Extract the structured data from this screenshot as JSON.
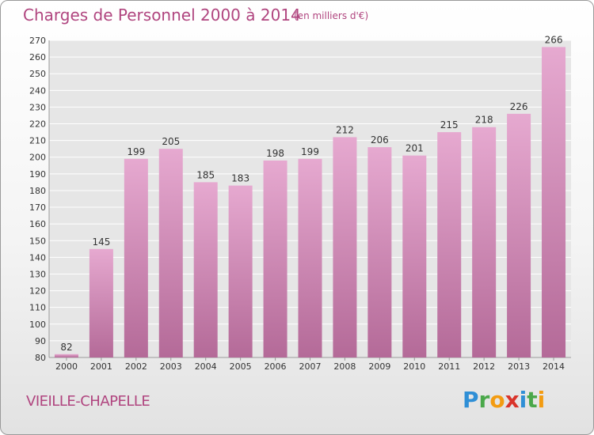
{
  "title": "Charges de Personnel 2000 à 2014",
  "subtitle": "(en milliers d'€)",
  "commune": "VIEILLE-CHAPELLE",
  "logo": {
    "letters": [
      "P",
      "r",
      "o",
      "x",
      "i",
      "t",
      "i"
    ],
    "colors": [
      "#2f8fd6",
      "#4aa84a",
      "#f39c12",
      "#d9342b",
      "#2f8fd6",
      "#4aa84a",
      "#f39c12"
    ]
  },
  "colors": {
    "bar_top": "#e6a9d0",
    "bar_bottom": "#b46a98",
    "grid": "#ffffff",
    "text": "#333333",
    "accent": "#b0457f"
  },
  "chart_data": {
    "type": "bar",
    "categories": [
      "2000",
      "2001",
      "2002",
      "2003",
      "2004",
      "2005",
      "2006",
      "2007",
      "2008",
      "2009",
      "2010",
      "2011",
      "2012",
      "2013",
      "2014"
    ],
    "values": [
      82,
      145,
      199,
      205,
      185,
      183,
      198,
      199,
      212,
      206,
      201,
      215,
      218,
      226,
      266
    ],
    "ylim": [
      80,
      270
    ],
    "yticks": [
      80,
      90,
      100,
      110,
      120,
      130,
      140,
      150,
      160,
      170,
      180,
      190,
      200,
      210,
      220,
      230,
      240,
      250,
      260,
      270
    ],
    "grid": true,
    "data_labels": true
  }
}
